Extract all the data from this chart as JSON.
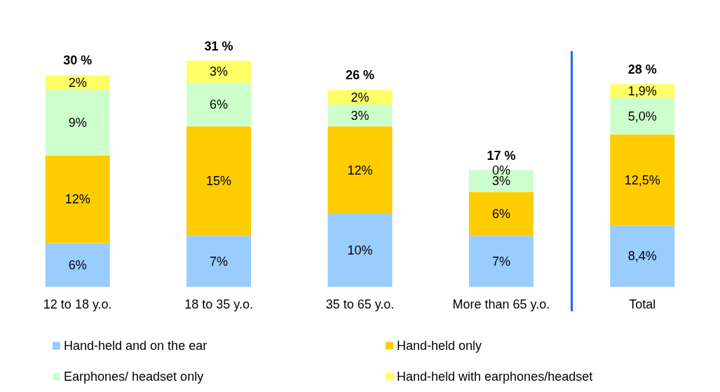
{
  "chart_data": {
    "type": "bar",
    "stacked": true,
    "categories": [
      "12 to 18 y.o.",
      "18 to 35 y.o.",
      "35 to 65 y.o.",
      "More than 65 y.o.",
      "Total"
    ],
    "series": [
      {
        "name": "Hand-held and on the ear",
        "color": "#99ccff",
        "values": [
          6,
          7,
          10,
          7,
          8.4
        ],
        "value_labels": [
          "6%",
          "7%",
          "10%",
          "7%",
          "8,4%"
        ]
      },
      {
        "name": "Hand-held only",
        "color": "#ffcc00",
        "values": [
          12,
          15,
          12,
          6,
          12.5
        ],
        "value_labels": [
          "12%",
          "15%",
          "12%",
          "6%",
          "12,5%"
        ]
      },
      {
        "name": "Earphones/ headset only",
        "color": "#ccffcc",
        "values": [
          9,
          6,
          3,
          3,
          5.0
        ],
        "value_labels": [
          "9%",
          "6%",
          "3%",
          "3%",
          "5,0%"
        ]
      },
      {
        "name": "Hand-held with earphones/headset",
        "color": "#ffff66",
        "values": [
          2,
          3,
          2,
          0,
          1.9
        ],
        "value_labels": [
          "2%",
          "3%",
          "2%",
          "0%",
          "1,9%"
        ]
      }
    ],
    "totals": [
      "30 %",
      "31 %",
      "26 %",
      "17 %",
      "28 %"
    ],
    "legend": "bottom",
    "grid": false
  }
}
